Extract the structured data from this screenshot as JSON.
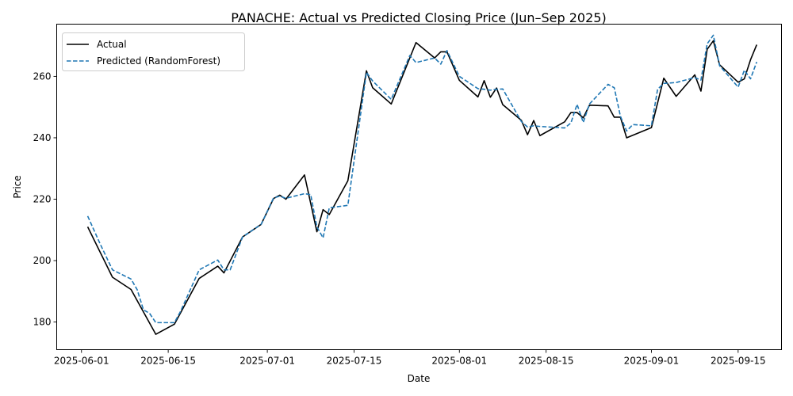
{
  "chart_data": {
    "type": "line",
    "title": "PANACHE: Actual vs Predicted Closing Price (Jun–Sep 2025)",
    "xlabel": "Date",
    "ylabel": "Price",
    "xlim": [
      "2025-05-28",
      "2025-09-22"
    ],
    "ylim": [
      171,
      277
    ],
    "x_ticks": [
      "2025-06-01",
      "2025-06-15",
      "2025-07-01",
      "2025-07-15",
      "2025-08-01",
      "2025-08-15",
      "2025-09-01",
      "2025-09-15"
    ],
    "y_ticks": [
      180,
      200,
      220,
      240,
      260
    ],
    "grid": false,
    "legend_position": "top-left",
    "series": [
      {
        "name": "Actual",
        "color": "#000000",
        "style": "solid",
        "points": [
          [
            "2025-06-02",
            211.0
          ],
          [
            "2025-06-06",
            194.6
          ],
          [
            "2025-06-09",
            190.6
          ],
          [
            "2025-06-13",
            176.0
          ],
          [
            "2025-06-16",
            179.3
          ],
          [
            "2025-06-20",
            194.2
          ],
          [
            "2025-06-23",
            198.2
          ],
          [
            "2025-06-24",
            196.0
          ],
          [
            "2025-06-27",
            207.7
          ],
          [
            "2025-06-30",
            211.8
          ],
          [
            "2025-07-02",
            220.2
          ],
          [
            "2025-07-03",
            221.3
          ],
          [
            "2025-07-04",
            220.0
          ],
          [
            "2025-07-07",
            227.9
          ],
          [
            "2025-07-09",
            209.4
          ],
          [
            "2025-07-10",
            216.6
          ],
          [
            "2025-07-11",
            215.0
          ],
          [
            "2025-07-14",
            226.0
          ],
          [
            "2025-07-17",
            261.8
          ],
          [
            "2025-07-18",
            256.3
          ],
          [
            "2025-07-21",
            251.0
          ],
          [
            "2025-07-25",
            271.0
          ],
          [
            "2025-07-28",
            266.0
          ],
          [
            "2025-07-29",
            268.0
          ],
          [
            "2025-07-30",
            268.0
          ],
          [
            "2025-08-01",
            258.7
          ],
          [
            "2025-08-04",
            253.3
          ],
          [
            "2025-08-05",
            258.6
          ],
          [
            "2025-08-06",
            253.2
          ],
          [
            "2025-08-07",
            256.2
          ],
          [
            "2025-08-08",
            250.8
          ],
          [
            "2025-08-11",
            245.7
          ],
          [
            "2025-08-12",
            241.0
          ],
          [
            "2025-08-13",
            245.6
          ],
          [
            "2025-08-14",
            240.7
          ],
          [
            "2025-08-18",
            245.2
          ],
          [
            "2025-08-19",
            248.2
          ],
          [
            "2025-08-20",
            248.2
          ],
          [
            "2025-08-21",
            246.5
          ],
          [
            "2025-08-22",
            250.6
          ],
          [
            "2025-08-25",
            250.4
          ],
          [
            "2025-08-26",
            246.7
          ],
          [
            "2025-08-27",
            246.7
          ],
          [
            "2025-08-28",
            240.0
          ],
          [
            "2025-09-01",
            243.3
          ],
          [
            "2025-09-03",
            259.4
          ],
          [
            "2025-09-05",
            253.5
          ],
          [
            "2025-09-08",
            260.5
          ],
          [
            "2025-09-09",
            255.2
          ],
          [
            "2025-09-10",
            268.8
          ],
          [
            "2025-09-11",
            271.6
          ],
          [
            "2025-09-12",
            263.8
          ],
          [
            "2025-09-15",
            258.1
          ],
          [
            "2025-09-16",
            259.2
          ],
          [
            "2025-09-17",
            265.4
          ],
          [
            "2025-09-18",
            270.3
          ]
        ]
      },
      {
        "name": "Predicted (RandomForest)",
        "color": "#1f77b4",
        "style": "dashed",
        "points": [
          [
            "2025-06-02",
            214.5
          ],
          [
            "2025-06-04",
            205.5
          ],
          [
            "2025-06-06",
            197.0
          ],
          [
            "2025-06-09",
            194.0
          ],
          [
            "2025-06-10",
            190.5
          ],
          [
            "2025-06-11",
            184.0
          ],
          [
            "2025-06-12",
            182.8
          ],
          [
            "2025-06-13",
            179.8
          ],
          [
            "2025-06-16",
            179.8
          ],
          [
            "2025-06-17",
            183.5
          ],
          [
            "2025-06-20",
            197.0
          ],
          [
            "2025-06-23",
            200.2
          ],
          [
            "2025-06-24",
            197.0
          ],
          [
            "2025-06-25",
            197.0
          ],
          [
            "2025-06-27",
            207.7
          ],
          [
            "2025-06-30",
            211.8
          ],
          [
            "2025-07-02",
            220.4
          ],
          [
            "2025-07-03",
            221.0
          ],
          [
            "2025-07-04",
            220.3
          ],
          [
            "2025-07-07",
            221.8
          ],
          [
            "2025-07-08",
            221.5
          ],
          [
            "2025-07-09",
            211.0
          ],
          [
            "2025-07-10",
            207.4
          ],
          [
            "2025-07-11",
            217.2
          ],
          [
            "2025-07-14",
            218.0
          ],
          [
            "2025-07-17",
            261.3
          ],
          [
            "2025-07-18",
            258.5
          ],
          [
            "2025-07-21",
            252.5
          ],
          [
            "2025-07-24",
            266.8
          ],
          [
            "2025-07-25",
            264.5
          ],
          [
            "2025-07-28",
            266.0
          ],
          [
            "2025-07-29",
            264.0
          ],
          [
            "2025-07-30",
            268.4
          ],
          [
            "2025-08-01",
            260.0
          ],
          [
            "2025-08-04",
            256.0
          ],
          [
            "2025-08-05",
            255.8
          ],
          [
            "2025-08-06",
            255.5
          ],
          [
            "2025-08-07",
            255.8
          ],
          [
            "2025-08-08",
            255.9
          ],
          [
            "2025-08-11",
            245.3
          ],
          [
            "2025-08-12",
            243.5
          ],
          [
            "2025-08-13",
            243.9
          ],
          [
            "2025-08-14",
            243.7
          ],
          [
            "2025-08-18",
            243.2
          ],
          [
            "2025-08-19",
            244.8
          ],
          [
            "2025-08-20",
            250.9
          ],
          [
            "2025-08-21",
            245.0
          ],
          [
            "2025-08-22",
            251.0
          ],
          [
            "2025-08-25",
            257.4
          ],
          [
            "2025-08-26",
            256.3
          ],
          [
            "2025-08-27",
            247.0
          ],
          [
            "2025-08-28",
            242.2
          ],
          [
            "2025-08-29",
            244.3
          ],
          [
            "2025-09-01",
            243.9
          ],
          [
            "2025-09-02",
            255.8
          ],
          [
            "2025-09-03",
            257.7
          ],
          [
            "2025-09-05",
            258.0
          ],
          [
            "2025-09-08",
            259.6
          ],
          [
            "2025-09-09",
            258.8
          ],
          [
            "2025-09-10",
            270.6
          ],
          [
            "2025-09-11",
            273.4
          ],
          [
            "2025-09-12",
            263.5
          ],
          [
            "2025-09-15",
            256.5
          ],
          [
            "2025-09-16",
            262.0
          ],
          [
            "2025-09-17",
            259.2
          ],
          [
            "2025-09-18",
            264.7
          ]
        ]
      }
    ]
  }
}
